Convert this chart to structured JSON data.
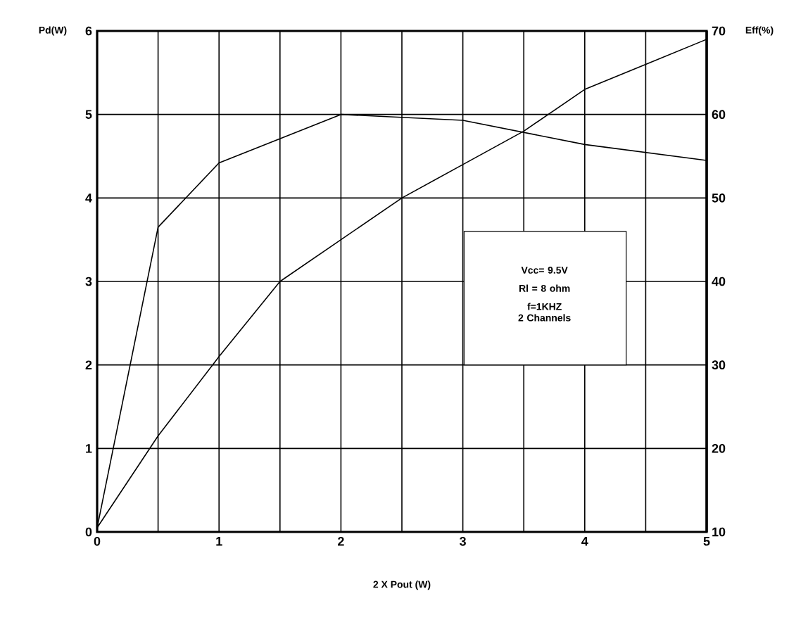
{
  "chart_data": {
    "type": "line",
    "xlabel": "2 X Pout (W)",
    "ylabel": "Pd(W)",
    "y2label": "Eff(%)",
    "xlim": [
      0,
      5
    ],
    "xticks": [
      0,
      {
        "value": 0.5,
        "label": null
      },
      1,
      {
        "value": 1.5,
        "label": null
      },
      2,
      {
        "value": 2.5,
        "label": null
      },
      3,
      {
        "value": 3.5,
        "label": null
      },
      4,
      {
        "value": 4.5,
        "label": null
      },
      5
    ],
    "ylim": [
      0,
      6
    ],
    "yticks": [
      0,
      1,
      2,
      3,
      4,
      5,
      6
    ],
    "y2lim": [
      10,
      70
    ],
    "y2ticks": [
      10,
      20,
      30,
      40,
      50,
      60,
      70
    ],
    "grid": true,
    "annotations": [
      "Vcc= 9.5V",
      "Rl = 8 ohm",
      "f=1KHZ",
      "2 Channels"
    ],
    "series": [
      {
        "color": "#000000",
        "x": [
          0,
          0.5,
          1,
          2,
          3,
          4,
          5
        ],
        "values": [
          0.05,
          3.65,
          4.42,
          5.0,
          4.93,
          4.64,
          4.45
        ]
      },
      {
        "color": "#000000",
        "axis": "y2",
        "x": [
          0,
          0.5,
          1,
          1.5,
          2,
          2.5,
          3,
          3.5,
          4,
          4.5,
          5
        ],
        "values": [
          10.5,
          21.5,
          31,
          40,
          45,
          50,
          54,
          58,
          63,
          66,
          69
        ]
      }
    ]
  }
}
